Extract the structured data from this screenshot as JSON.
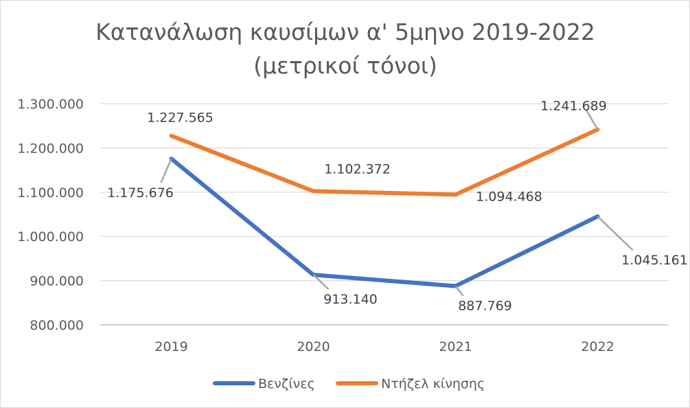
{
  "chart_data": {
    "type": "line",
    "title": "Κατανάλωση καυσίμων α' 5μηνο 2019-2022",
    "subtitle": "(μετρικοί τόνοι)",
    "xlabel": "",
    "ylabel": "",
    "categories": [
      "2019",
      "2020",
      "2021",
      "2022"
    ],
    "ylim": [
      800000,
      1300000
    ],
    "yticks": [
      800000,
      900000,
      1000000,
      1100000,
      1200000,
      1300000
    ],
    "ytick_labels": [
      "800.000",
      "900.000",
      "1.000.000",
      "1.100.000",
      "1.200.000",
      "1.300.000"
    ],
    "grid": true,
    "legend_position": "bottom",
    "series": [
      {
        "name": "Βενζίνες",
        "color": "#4472C4",
        "values": [
          1175676,
          913140,
          887769,
          1045161
        ],
        "labels": [
          "1.175.676",
          "913.140",
          "887.769",
          "1.045.161"
        ]
      },
      {
        "name": "Ντήζελ κίνησης",
        "color": "#ED7D31",
        "values": [
          1227565,
          1102372,
          1094468,
          1241689
        ],
        "labels": [
          "1.227.565",
          "1.102.372",
          "1.094.468",
          "1.241.689"
        ]
      }
    ]
  }
}
